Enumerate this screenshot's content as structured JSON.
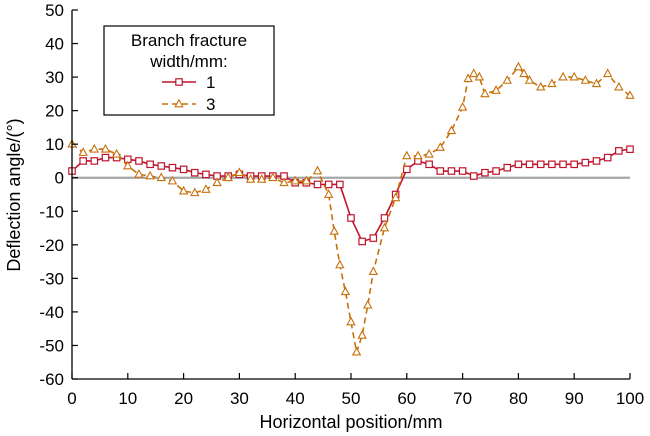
{
  "chart_data": {
    "type": "line",
    "title": "",
    "xlabel": "Horizontal position/mm",
    "ylabel": "Deflection angle/(°)",
    "xlim": [
      0,
      100
    ],
    "ylim": [
      -60,
      50
    ],
    "xticks": [
      0,
      10,
      20,
      30,
      40,
      50,
      60,
      70,
      80,
      90,
      100
    ],
    "yticks": [
      -60,
      -50,
      -40,
      -30,
      -20,
      -10,
      0,
      10,
      20,
      30,
      40,
      50
    ],
    "grid": false,
    "reference_line": {
      "y": 0,
      "color": "#a6a6a6"
    },
    "legend": {
      "title_lines": [
        "Branch fracture",
        "width/mm:"
      ],
      "placement": "top-left"
    },
    "series": [
      {
        "name": "1",
        "color": "#c0142c",
        "marker": "square",
        "dash": "solid",
        "x": [
          0,
          2,
          4,
          6,
          8,
          10,
          12,
          14,
          16,
          18,
          20,
          22,
          24,
          26,
          28,
          30,
          32,
          34,
          36,
          38,
          40,
          42,
          44,
          46,
          48,
          50,
          52,
          54,
          56,
          58,
          60,
          62,
          64,
          66,
          68,
          70,
          72,
          74,
          76,
          78,
          80,
          82,
          84,
          86,
          88,
          90,
          92,
          94,
          96,
          98,
          100
        ],
        "y": [
          2,
          5,
          5,
          6,
          6,
          5.5,
          5,
          4,
          3.5,
          3,
          2.5,
          1.5,
          1,
          0.5,
          0.5,
          1,
          0.5,
          0.5,
          0.5,
          0.5,
          -1.5,
          -1.5,
          -2,
          -2,
          -2,
          -12,
          -19,
          -18,
          -12,
          -5,
          2.5,
          5,
          4,
          2,
          2,
          2,
          0.5,
          1.5,
          2,
          3,
          4,
          4,
          4,
          4,
          4,
          4,
          4.5,
          5,
          6,
          8,
          8.5
        ]
      },
      {
        "name": "3",
        "color": "#c8700a",
        "marker": "triangle",
        "dash": "dashed",
        "x": [
          0,
          2,
          4,
          6,
          8,
          10,
          12,
          14,
          16,
          18,
          20,
          22,
          24,
          26,
          28,
          30,
          32,
          34,
          36,
          38,
          40,
          42,
          44,
          46,
          47,
          48,
          49,
          50,
          51,
          52,
          53,
          54,
          56,
          58,
          60,
          62,
          64,
          66,
          68,
          70,
          71,
          72,
          73,
          74,
          76,
          78,
          80,
          81,
          82,
          84,
          86,
          88,
          90,
          92,
          94,
          96,
          98,
          100
        ],
        "y": [
          10,
          7.5,
          8.5,
          8.5,
          7,
          3.5,
          1,
          0.5,
          0,
          -1,
          -4,
          -4.5,
          -3.5,
          -1.5,
          0,
          1.5,
          -0.5,
          -0.5,
          0,
          -1.5,
          -1,
          -1,
          2,
          -5,
          -16,
          -26,
          -34,
          -43,
          -52,
          -47,
          -38,
          -28,
          -15,
          -6,
          6.5,
          6.5,
          7,
          9,
          14,
          21,
          29.5,
          31,
          30,
          25,
          26,
          29,
          33,
          31,
          29,
          27,
          28,
          30,
          30,
          29,
          28,
          31,
          27,
          24.5
        ]
      }
    ]
  }
}
